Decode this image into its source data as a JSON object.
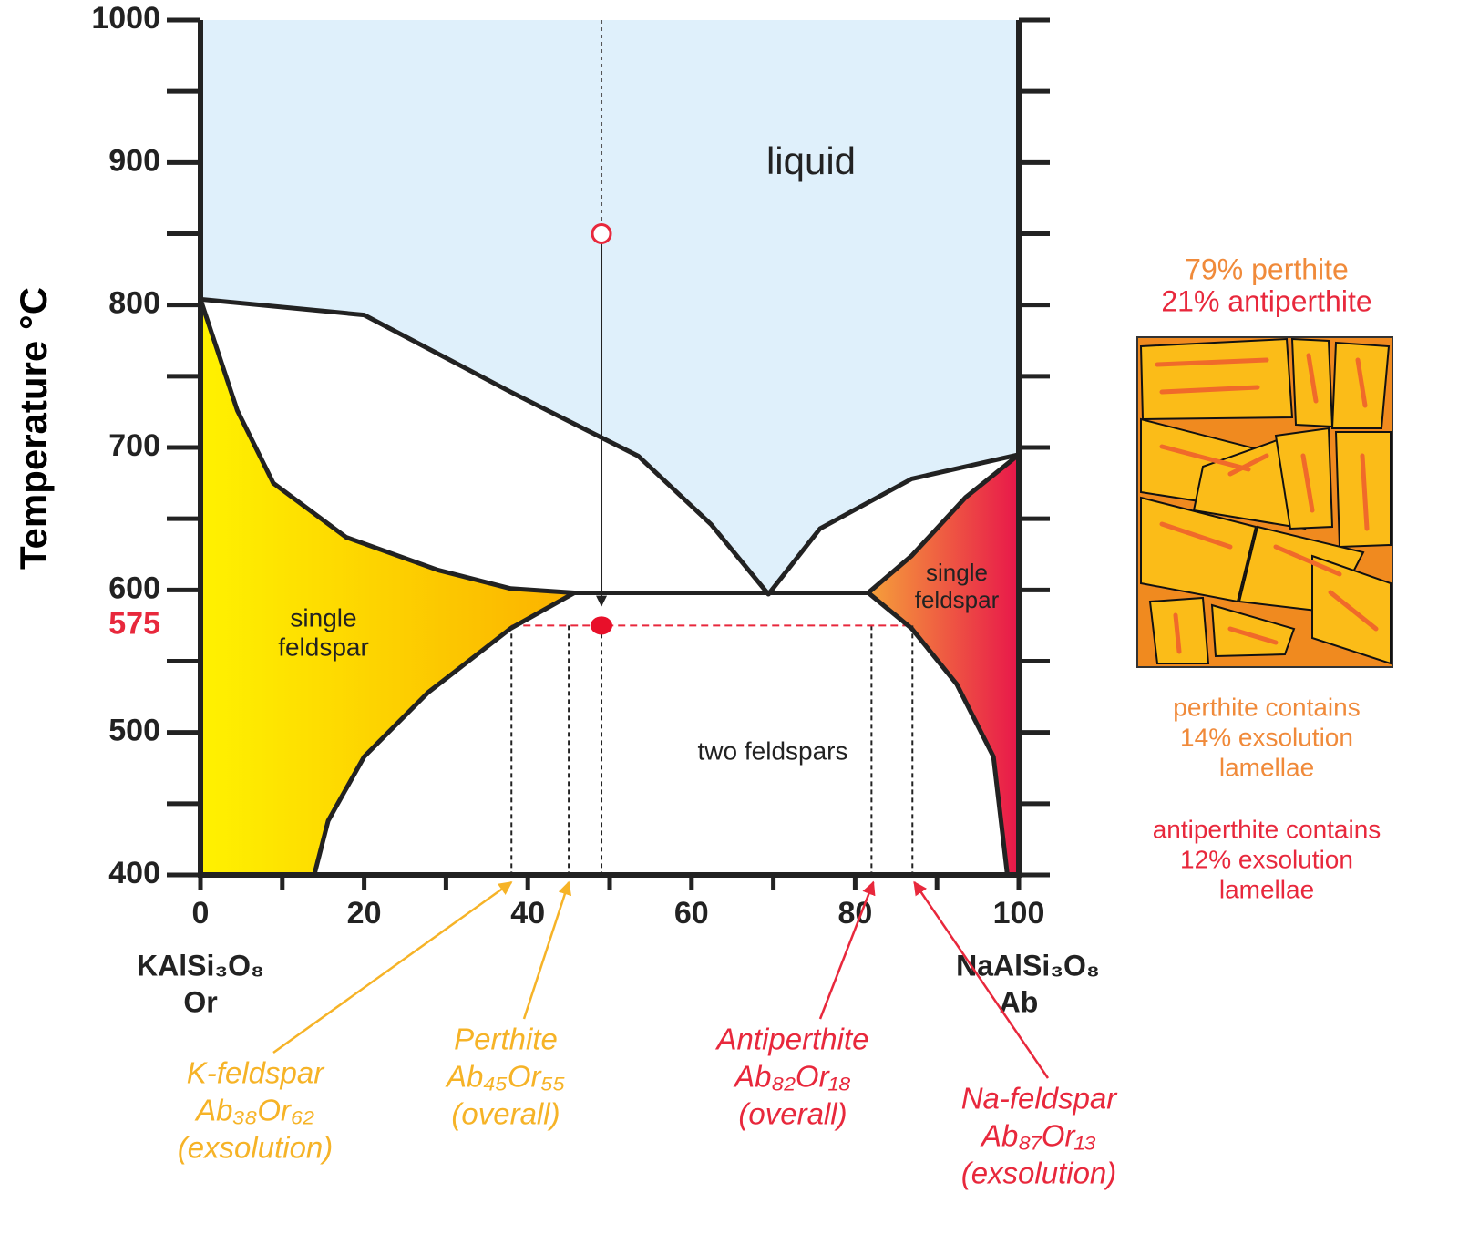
{
  "chart_data": {
    "type": "phase-diagram",
    "ylabel": "Temperature °C",
    "xlim": [
      0,
      100
    ],
    "ylim": [
      400,
      1000
    ],
    "xticks": [
      0,
      20,
      40,
      60,
      80,
      100
    ],
    "xminor": [
      10,
      30,
      50,
      70,
      90
    ],
    "yticks": [
      400,
      500,
      600,
      700,
      800,
      900,
      1000
    ],
    "yminor": [
      450,
      550,
      650,
      750,
      850,
      950
    ],
    "boundaries": [
      {
        "x": [
          0,
          20,
          37.9,
          53.5,
          62.4,
          69.4,
          75.7,
          86.9,
          100
        ],
        "y": [
          804,
          793,
          739,
          694,
          646,
          597,
          643,
          678,
          695
        ]
      },
      {
        "x": [
          0,
          4.5,
          8.9,
          17.8,
          29,
          37.9,
          45.7,
          81.6,
          86.9,
          93.5,
          100
        ],
        "y": [
          804,
          726,
          675,
          637,
          614,
          601,
          598,
          598,
          624,
          665,
          695
        ]
      },
      {
        "x": [
          45.7,
          37.9,
          27.8,
          20,
          15.6,
          13.9
        ],
        "y": [
          598,
          573,
          528,
          483,
          438,
          400
        ]
      },
      {
        "x": [
          81.6,
          86.9,
          92.4,
          96.9,
          98.6
        ],
        "y": [
          598,
          573,
          534,
          483,
          400
        ]
      }
    ],
    "region_labels": [
      [
        "liquid"
      ],
      [
        "single",
        "feldspar"
      ],
      [
        "two feldspars"
      ],
      [
        "single",
        "feldspar"
      ]
    ],
    "start_point": {
      "x": 49,
      "y": 850
    },
    "cooling_point": {
      "x": 49,
      "y": 575,
      "label": "575"
    },
    "endmembers": [
      [
        "KAlSi₃O₈",
        "Or"
      ],
      [
        "NaAlSi₃O₈",
        "Ab"
      ]
    ],
    "compositions": [
      {
        "x": 38,
        "color": "#f6b327",
        "lines": [
          "K-feldspar",
          "Ab₃₈Or₆₂",
          "(exsolution)"
        ]
      },
      {
        "x": 45,
        "color": "#f6b327",
        "lines": [
          "Perthite",
          "Ab₄₅Or₅₅",
          "(overall)"
        ]
      },
      {
        "x": 82,
        "color": "#e8283c",
        "lines": [
          "Antiperthite",
          "Ab₈₂Or₁₈",
          "(overall)"
        ]
      },
      {
        "x": 87,
        "color": "#e8283c",
        "lines": [
          "Na-feldspar",
          "Ab₈₇Or₁₃",
          "(exsolution)"
        ]
      }
    ],
    "notes": [
      {
        "color": "#f08a3a",
        "lines": [
          "79% perthite"
        ]
      },
      {
        "color": "#e8283c",
        "lines": [
          "21% antiperthite"
        ]
      },
      {
        "color": "#f08a3a",
        "lines": [
          "perthite contains",
          "14% exsolution",
          "lamellae"
        ]
      },
      {
        "color": "#e8283c",
        "lines": [
          "antiperthite contains",
          "12% exsolution",
          "lamellae"
        ]
      }
    ]
  }
}
